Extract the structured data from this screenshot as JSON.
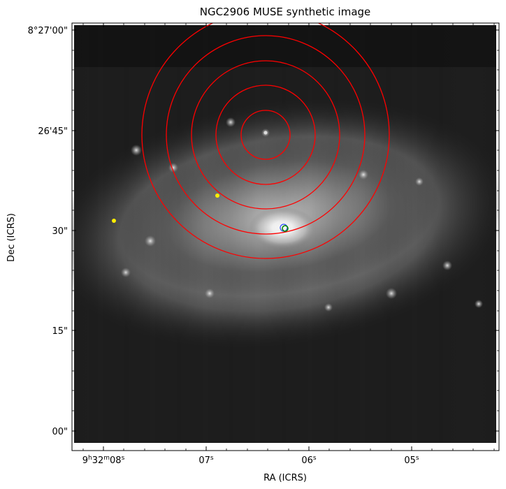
{
  "figure": {
    "title": "NGC2906 MUSE synthetic image",
    "xlabel": "RA (ICRS)",
    "ylabel": "Dec (ICRS)",
    "xticks": {
      "t0": {
        "h": "9",
        "m": "32",
        "s": "08"
      },
      "t1": {
        "s": "07"
      },
      "t2": {
        "s": "06"
      },
      "t3": {
        "s": "05"
      }
    },
    "yticks": {
      "t0": "8°27'00\"",
      "t1": "26'45\"",
      "t2": "30\"",
      "t3": "15\"",
      "t4": "00\""
    }
  },
  "colors": {
    "rings": "#ff0000",
    "background": "#000000",
    "star": "#ffee00",
    "marker_blue": "#3355ff",
    "marker_green": "#008800"
  },
  "image": {
    "colormap": "gray",
    "annuli_count": 5,
    "features": [
      "galaxy-bulge",
      "spiral-arms",
      "foreground-star",
      "foreground-star",
      "annuli-center",
      "blue-marker",
      "green-marker"
    ]
  }
}
